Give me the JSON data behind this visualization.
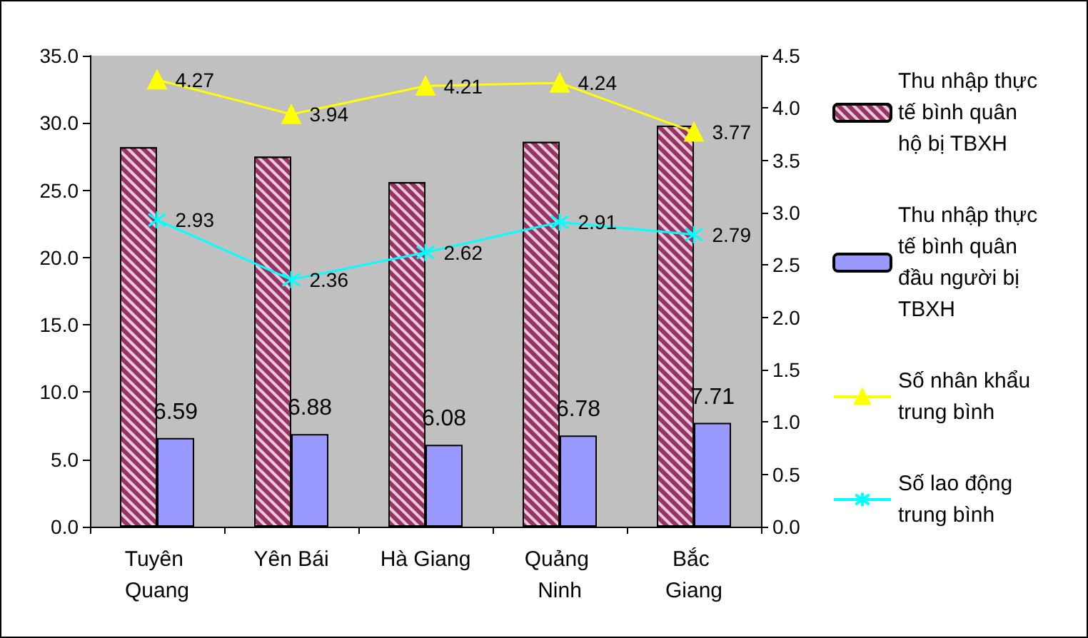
{
  "chart_data": {
    "type": "bar",
    "categories": [
      "Tuyên Quang",
      "Yên Bái",
      "Hà Giang",
      "Quảng Ninh",
      "Bắc Giang"
    ],
    "series": [
      {
        "name": "Thu nhập thực tế bình quân hộ bị TBXH",
        "color": "#993366",
        "values": [
          28.2,
          27.5,
          25.6,
          28.6,
          29.8
        ]
      },
      {
        "name": "Thu nhập thực tế bình quân đầu người bị TBXH",
        "color": "#9999ff",
        "values": [
          6.59,
          6.88,
          6.08,
          6.78,
          7.71
        ],
        "value_labels": [
          "6.59",
          "6.88",
          "6.08",
          "6.78",
          "7.71"
        ]
      },
      {
        "name": "Số nhân khẩu trung bình",
        "type": "line",
        "axis": "y2",
        "marker": "triangle",
        "color": "#ffff00",
        "values": [
          4.27,
          3.94,
          4.21,
          4.24,
          3.77
        ],
        "value_labels": [
          "4.27",
          "3.94",
          "4.21",
          "4.24",
          "3.77"
        ]
      },
      {
        "name": "Số lao động trung bình",
        "type": "line",
        "axis": "y2",
        "marker": "cross",
        "color": "#00ffff",
        "values": [
          2.93,
          2.36,
          2.62,
          2.91,
          2.79
        ],
        "value_labels": [
          "2.93",
          "2.36",
          "2.62",
          "2.91",
          "2.79"
        ]
      }
    ],
    "ylim": [
      0,
      35
    ],
    "yticks": [
      {
        "value": 0,
        "label": "0.0"
      },
      {
        "value": 5,
        "label": "5.0"
      },
      {
        "value": 10,
        "label": "10.0"
      },
      {
        "value": 15,
        "label": "15.0"
      },
      {
        "value": 20,
        "label": "20.0"
      },
      {
        "value": 25,
        "label": "25.0"
      },
      {
        "value": 30,
        "label": "30.0"
      },
      {
        "value": 35,
        "label": "35.0"
      }
    ],
    "y2lim": [
      0,
      4.5
    ],
    "y2ticks": [
      {
        "value": 0,
        "label": "0.0"
      },
      {
        "value": 0.5,
        "label": "0.5"
      },
      {
        "value": 1,
        "label": "1.0"
      },
      {
        "value": 1.5,
        "label": "1.5"
      },
      {
        "value": 2,
        "label": "2.0"
      },
      {
        "value": 2.5,
        "label": "2.5"
      },
      {
        "value": 3,
        "label": "3.0"
      },
      {
        "value": 3.5,
        "label": "3.5"
      },
      {
        "value": 4,
        "label": "4.0"
      },
      {
        "value": 4.5,
        "label": "4.5"
      }
    ],
    "grid": false,
    "legend": "right"
  }
}
